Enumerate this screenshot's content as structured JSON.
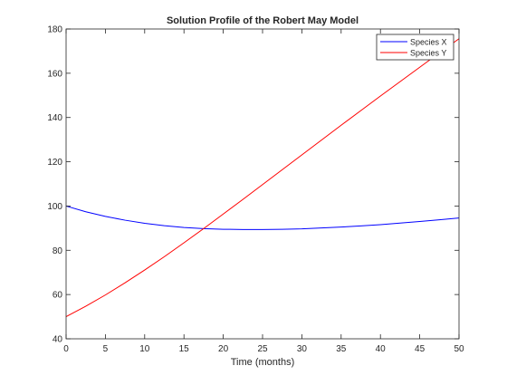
{
  "chart_data": {
    "type": "line",
    "title": "Solution Profile of the Robert May Model",
    "xlabel": "Time (months)",
    "ylabel": "",
    "xlim": [
      0,
      50
    ],
    "ylim": [
      40,
      180
    ],
    "xticks": [
      0,
      5,
      10,
      15,
      20,
      25,
      30,
      35,
      40,
      45,
      50
    ],
    "yticks": [
      40,
      60,
      80,
      100,
      120,
      140,
      160,
      180
    ],
    "grid": false,
    "legend_position": "top-right",
    "series": [
      {
        "name": "Species X",
        "color": "#0000ff",
        "x": [
          0,
          2.5,
          5,
          7.5,
          10,
          12.5,
          15,
          17.5,
          20,
          22.5,
          25,
          27.5,
          30,
          32.5,
          35,
          37.5,
          40,
          42.5,
          45,
          47.5,
          50
        ],
        "y": [
          100,
          97.4,
          95.3,
          93.6,
          92.2,
          91.1,
          90.3,
          89.8,
          89.5,
          89.4,
          89.4,
          89.5,
          89.7,
          90.1,
          90.5,
          91.0,
          91.6,
          92.3,
          93.0,
          93.8,
          94.6
        ]
      },
      {
        "name": "Species Y",
        "color": "#ff0000",
        "x": [
          0,
          2.5,
          5,
          7.5,
          10,
          12.5,
          15,
          17.5,
          20,
          22.5,
          25,
          27.5,
          30,
          32.5,
          35,
          37.5,
          40,
          42.5,
          45,
          47.5,
          50
        ],
        "y": [
          50.0,
          54.7,
          59.8,
          65.3,
          71.1,
          77.1,
          83.4,
          89.8,
          96.4,
          103.0,
          109.7,
          116.4,
          123.1,
          129.8,
          136.5,
          143.1,
          149.7,
          156.2,
          162.7,
          169.2,
          175.6
        ]
      }
    ]
  }
}
